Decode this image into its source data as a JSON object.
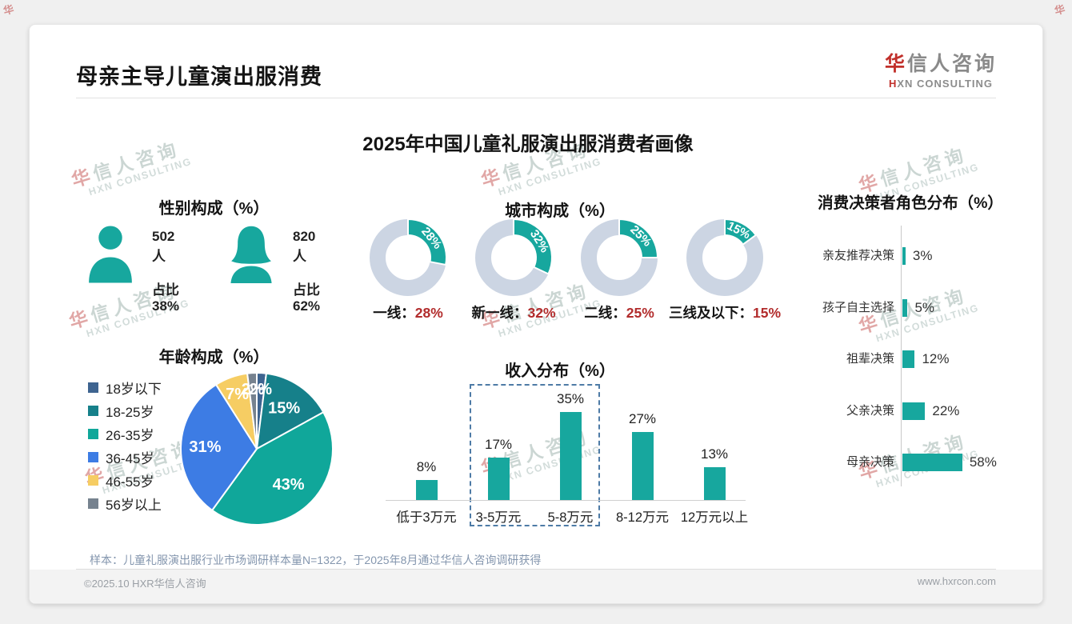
{
  "header": {
    "title": "母亲主导儿童演出服消费",
    "logo": {
      "cn_first": "华",
      "cn_rest": "信人咨询",
      "en_first": "H",
      "en_rest": "XN CONSULTING"
    }
  },
  "main_title": "2025年中国儿童礼服演出服消费者画像",
  "watermark": {
    "cn_first": "华",
    "cn_rest": "信人咨询",
    "en": "HXN CONSULTING"
  },
  "colors": {
    "teal": "#17a79e",
    "donut_base": "#ccd5e3",
    "value_red": "#b22c2c",
    "axis_gray": "#c9c9c9",
    "highlight_border": "#4e7ba6"
  },
  "chart_data": [
    {
      "type": "icon-stat",
      "title": "性别构成（%）",
      "items": [
        {
          "icon": "male-icon",
          "count": "502人",
          "share": "占比38%"
        },
        {
          "icon": "female-icon",
          "count": "820人",
          "share": "占比62%"
        }
      ]
    },
    {
      "type": "donut-set",
      "title": "城市构成（%）",
      "items": [
        {
          "label": "一线",
          "value": 28
        },
        {
          "label": "新一线",
          "value": 32
        },
        {
          "label": "二线",
          "value": 25
        },
        {
          "label": "三线及以下",
          "value": 15
        }
      ]
    },
    {
      "type": "bar-horizontal",
      "title": "消费决策者角色分布（%）",
      "categories": [
        "亲友推荐决策",
        "孩子自主选择",
        "祖辈决策",
        "父亲决策",
        "母亲决策"
      ],
      "values": [
        3,
        5,
        12,
        22,
        58
      ],
      "bar_color": "#17a79e"
    },
    {
      "type": "pie",
      "title": "年龄构成（%）",
      "categories": [
        "18岁以下",
        "18-25岁",
        "26-35岁",
        "36-45岁",
        "46-55岁",
        "56岁以上"
      ],
      "values": [
        2,
        15,
        43,
        31,
        7,
        2
      ],
      "colors": [
        "#3e6490",
        "#16808a",
        "#10a79a",
        "#3d7ce4",
        "#f6cd63",
        "#76828f"
      ],
      "start_angle_deg": 0,
      "label_color": "#ffffff"
    },
    {
      "type": "bar",
      "title": "收入分布（%）",
      "categories": [
        "低于3万元",
        "3-5万元",
        "5-8万元",
        "8-12万元",
        "12万元以上"
      ],
      "values": [
        8,
        17,
        35,
        27,
        13
      ],
      "bar_color": "#17a79e",
      "highlight_categories": [
        "3-5万元",
        "5-8万元"
      ]
    }
  ],
  "footer": {
    "note": "样本：儿童礼服演出服行业市场调研样本量N=1322，于2025年8月通过华信人咨询调研获得",
    "copyright": "©2025.10 HXR华信人咨询",
    "website": "www.hxrcon.com"
  }
}
